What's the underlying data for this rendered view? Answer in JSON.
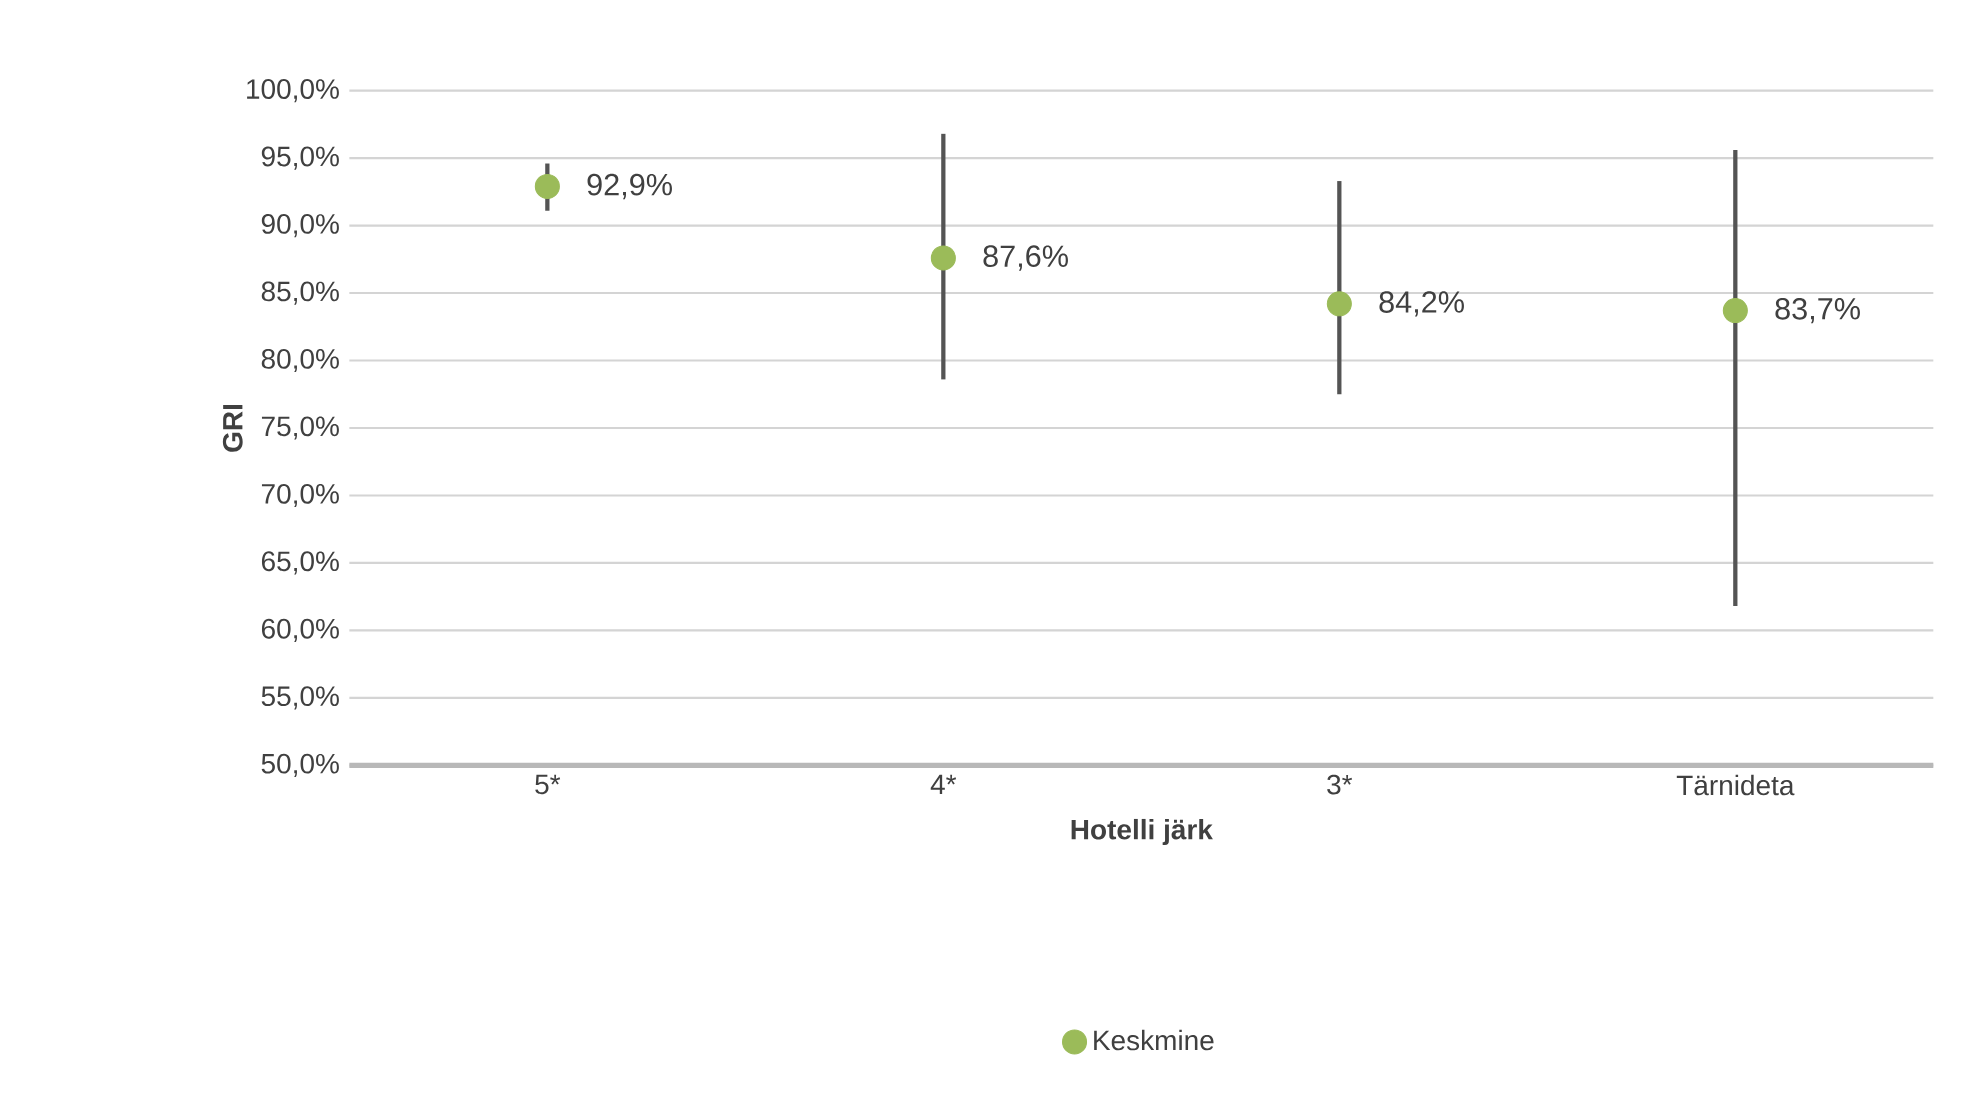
{
  "chart_data": {
    "type": "scatter",
    "xlabel": "Hotelli järk",
    "ylabel": "GRI",
    "categories": [
      "5*",
      "4*",
      "3*",
      "Tärnideta"
    ],
    "series": [
      {
        "name": "Keskmine",
        "color": "#9bbb59",
        "values": [
          92.9,
          87.6,
          84.2,
          83.7
        ],
        "errors": [
          [
            91.1,
            94.6
          ],
          [
            78.6,
            96.8
          ],
          [
            77.5,
            93.3
          ],
          [
            61.8,
            95.6
          ]
        ],
        "value_labels": [
          "92,9%",
          "87,6%",
          "84,2%",
          "83,7%"
        ]
      }
    ],
    "ylim": [
      50,
      100
    ],
    "yticks": [
      {
        "value": 50,
        "label": "50,0%"
      },
      {
        "value": 55,
        "label": "55,0%"
      },
      {
        "value": 60,
        "label": "60,0%"
      },
      {
        "value": 65,
        "label": "65,0%"
      },
      {
        "value": 70,
        "label": "70,0%"
      },
      {
        "value": 75,
        "label": "75,0%"
      },
      {
        "value": 80,
        "label": "80,0%"
      },
      {
        "value": 85,
        "label": "85,0%"
      },
      {
        "value": 90,
        "label": "90,0%"
      },
      {
        "value": 95,
        "label": "95,0%"
      },
      {
        "value": 100,
        "label": "100,0%"
      }
    ],
    "grid": "y",
    "legend": "bottom",
    "marker": "circle"
  }
}
